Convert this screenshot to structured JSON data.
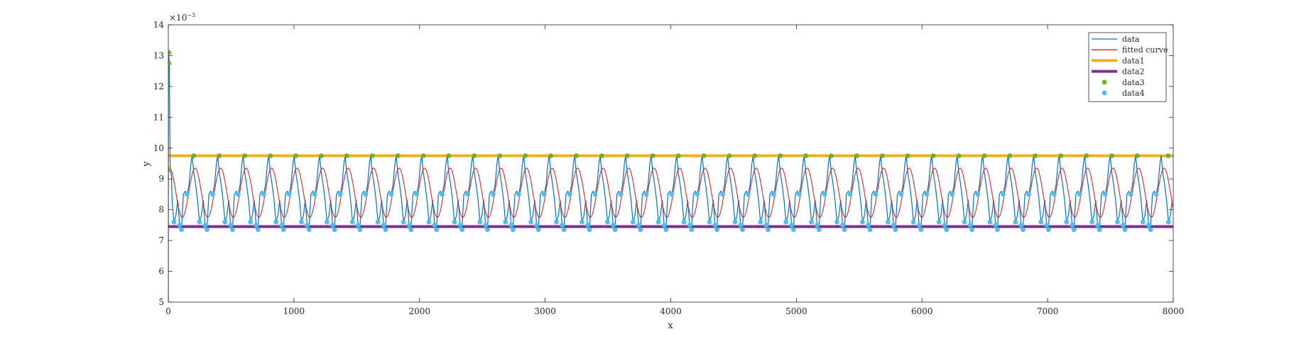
{
  "chart_data": {
    "type": "line",
    "xlabel": "x",
    "ylabel": "y",
    "exponent_label": "×10",
    "exponent_power": "−3",
    "xlim": [
      0,
      8000
    ],
    "ylim": [
      5,
      14
    ],
    "y_scale_factor": 0.001,
    "xticks": [
      0,
      1000,
      2000,
      3000,
      4000,
      5000,
      6000,
      7000,
      8000
    ],
    "yticks": [
      5,
      6,
      7,
      8,
      9,
      10,
      11,
      12,
      13,
      14
    ],
    "grid": false,
    "legend_position": "top-right",
    "period": 203,
    "series": [
      {
        "name": "data",
        "color": "#0072BD",
        "style": "line",
        "initial_spike": [
          [
            0,
            5.0
          ],
          [
            1,
            13.1
          ],
          [
            8,
            12.8
          ],
          [
            15,
            9.3
          ],
          [
            25,
            9.1
          ]
        ],
        "cycle_shape": [
          [
            0,
            9.2
          ],
          [
            15,
            8.8
          ],
          [
            30,
            8.3
          ],
          [
            45,
            7.6
          ],
          [
            60,
            7.8
          ],
          [
            75,
            8.3
          ],
          [
            90,
            7.5
          ],
          [
            105,
            7.4
          ],
          [
            120,
            8.5
          ],
          [
            135,
            8.6
          ],
          [
            150,
            8.5
          ],
          [
            165,
            8.8
          ],
          [
            180,
            9.5
          ],
          [
            190,
            9.75
          ],
          [
            203,
            9.2
          ]
        ]
      },
      {
        "name": "fitted curve",
        "color": "#D62728",
        "style": "sine",
        "mean": 8.55,
        "amplitude": 0.8,
        "phase_x_at_max": 10
      },
      {
        "name": "data1",
        "color": "#EDB120",
        "style": "hline",
        "y": 9.75
      },
      {
        "name": "data2",
        "color": "#7E2F8E",
        "style": "hline",
        "y": 7.45
      },
      {
        "name": "data3",
        "color": "#77AC30",
        "style": "points",
        "points": [
          [
            5,
            13.1
          ],
          [
            5,
            12.75
          ],
          [
            5,
            9.3
          ],
          [
            203,
            9.75
          ],
          [
            406,
            9.75
          ],
          [
            609,
            9.75
          ],
          [
            812,
            9.75
          ],
          [
            1015,
            9.75
          ],
          [
            1218,
            9.75
          ],
          [
            1421,
            9.75
          ],
          [
            1624,
            9.75
          ],
          [
            1827,
            9.75
          ],
          [
            2030,
            9.75
          ],
          [
            2233,
            9.75
          ],
          [
            2436,
            9.75
          ],
          [
            2639,
            9.75
          ],
          [
            2842,
            9.75
          ],
          [
            3045,
            9.75
          ],
          [
            3248,
            9.75
          ],
          [
            3451,
            9.75
          ],
          [
            3654,
            9.75
          ],
          [
            3857,
            9.75
          ],
          [
            4060,
            9.75
          ],
          [
            4263,
            9.75
          ],
          [
            4466,
            9.75
          ],
          [
            4669,
            9.75
          ],
          [
            4872,
            9.75
          ],
          [
            5075,
            9.75
          ],
          [
            5278,
            9.75
          ],
          [
            5481,
            9.75
          ],
          [
            5684,
            9.75
          ],
          [
            5887,
            9.75
          ],
          [
            6090,
            9.75
          ],
          [
            6293,
            9.75
          ],
          [
            6496,
            9.75
          ],
          [
            6699,
            9.75
          ],
          [
            6902,
            9.75
          ],
          [
            7105,
            9.75
          ],
          [
            7308,
            9.75
          ],
          [
            7511,
            9.75
          ],
          [
            7714,
            9.75
          ],
          [
            7960,
            9.75
          ]
        ]
      },
      {
        "name": "data4",
        "color": "#4DBEEE",
        "style": "points",
        "cycle_points": [
          [
            45,
            7.6
          ],
          [
            90,
            7.5
          ],
          [
            105,
            7.35
          ],
          [
            150,
            8.5
          ]
        ]
      }
    ]
  }
}
